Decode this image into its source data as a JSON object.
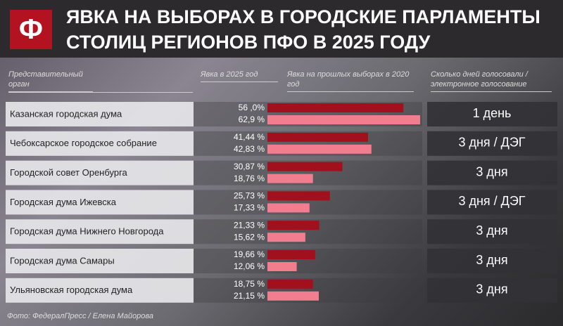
{
  "chart_data": {
    "type": "bar",
    "title": "ЯВКА НА ВЫБОРАХ В ГОРОДСКИЕ ПАРЛАМЕНТЫ СТОЛИЦ РЕГИОНОВ ПФО В 2025 ГОДУ",
    "category_header": "Представительный орган",
    "days_header": "Сколько дней голосовали / электронное голосование",
    "categories": [
      "Казанская городская дума",
      "Чебоксарское городское собрание",
      "Городской совет Оренбурга",
      "Городская дума Ижевска",
      "Городская дума Нижнего Новгорода",
      "Городская дума Самары",
      "Ульяновская городская дума"
    ],
    "series": [
      {
        "name": "Явка в 2025 год",
        "color": "#a3101d",
        "values": [
          56.0,
          41.44,
          30.87,
          25.73,
          21.33,
          19.66,
          18.75
        ],
        "value_labels": [
          "56 ,0%",
          "41,44 %",
          "30,87 %",
          "25,73 %",
          "21,33 %",
          "19,66 %",
          "18,75 %"
        ]
      },
      {
        "name": "Явка на прошлых выборах в 2020 год",
        "color": "#f27d8f",
        "values": [
          62.9,
          42.83,
          18.76,
          17.33,
          15.62,
          12.06,
          21.15
        ],
        "value_labels": [
          "62,9 %",
          "42,83 %",
          "18,76 %",
          "17,33 %",
          "15,62 %",
          "12,06 %",
          "21,15 %"
        ]
      }
    ],
    "days": [
      "1 день",
      "3 дня / ДЭГ",
      "3 дня",
      "3 дня / ДЭГ",
      "3 дня",
      "3 дня",
      "3 дня"
    ],
    "credit": "Фото: ФедералПресс / Елена Майорова"
  }
}
